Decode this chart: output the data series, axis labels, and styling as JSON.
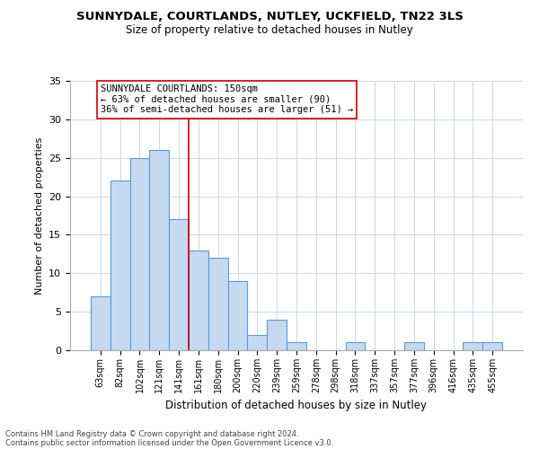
{
  "title1": "SUNNYDALE, COURTLANDS, NUTLEY, UCKFIELD, TN22 3LS",
  "title2": "Size of property relative to detached houses in Nutley",
  "xlabel": "Distribution of detached houses by size in Nutley",
  "ylabel": "Number of detached properties",
  "bar_labels": [
    "63sqm",
    "82sqm",
    "102sqm",
    "121sqm",
    "141sqm",
    "161sqm",
    "180sqm",
    "200sqm",
    "220sqm",
    "239sqm",
    "259sqm",
    "278sqm",
    "298sqm",
    "318sqm",
    "337sqm",
    "357sqm",
    "377sqm",
    "396sqm",
    "416sqm",
    "435sqm",
    "455sqm"
  ],
  "bar_values": [
    7,
    22,
    25,
    26,
    17,
    13,
    12,
    9,
    2,
    4,
    1,
    0,
    0,
    1,
    0,
    0,
    1,
    0,
    0,
    1,
    1
  ],
  "bar_color": "#c5d9f1",
  "bar_edge_color": "#5b9bd5",
  "redline_x": 4.5,
  "annotation_title": "SUNNYDALE COURTLANDS: 150sqm",
  "annotation_line1": "← 63% of detached houses are smaller (90)",
  "annotation_line2": "36% of semi-detached houses are larger (51) →",
  "ylim": [
    0,
    35
  ],
  "yticks": [
    0,
    5,
    10,
    15,
    20,
    25,
    30,
    35
  ],
  "footnote1": "Contains HM Land Registry data © Crown copyright and database right 2024.",
  "footnote2": "Contains public sector information licensed under the Open Government Licence v3.0.",
  "annotation_box_color": "#ffffff",
  "annotation_box_edge": "#cc0000"
}
